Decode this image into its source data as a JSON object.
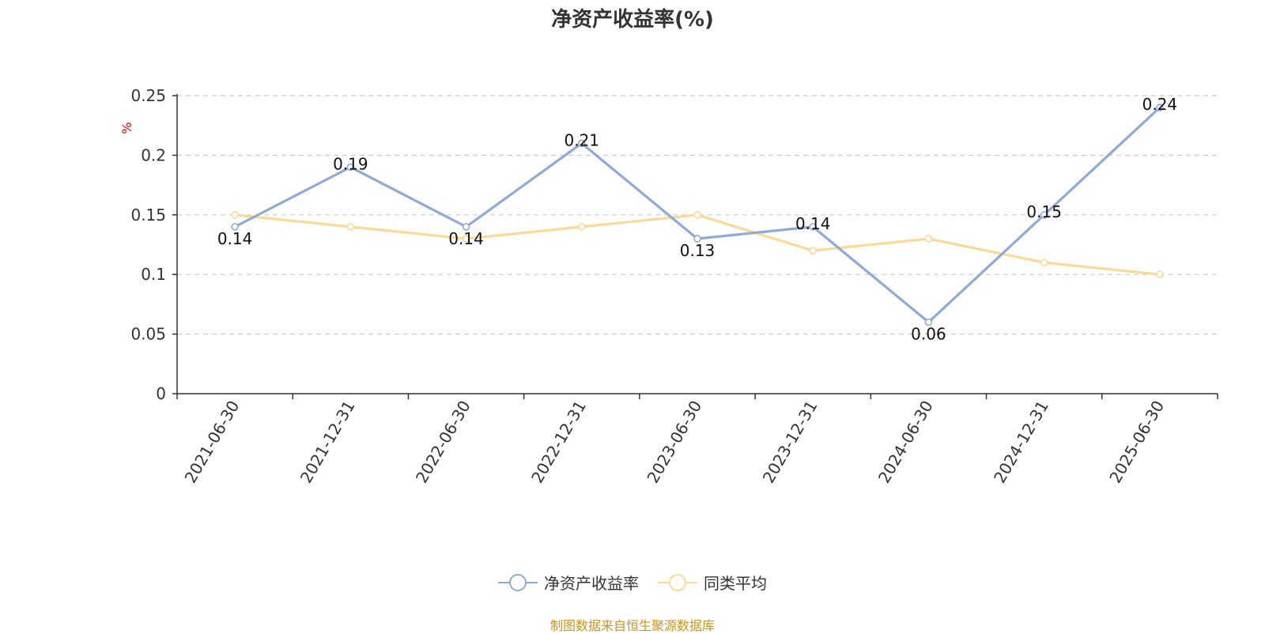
{
  "chart_data": {
    "type": "line",
    "title": "净资产收益率(%)",
    "ylabel": "%",
    "xlabel": "",
    "categories": [
      "2021-06-30",
      "2021-12-31",
      "2022-06-30",
      "2022-12-31",
      "2023-06-30",
      "2023-12-31",
      "2024-06-30",
      "2024-12-31",
      "2025-06-30"
    ],
    "ylim": [
      0,
      0.25
    ],
    "yticks": [
      "0",
      "0.05",
      "0.1",
      "0.15",
      "0.2",
      "0.25"
    ],
    "grid": true,
    "legend_position": "bottom",
    "series": [
      {
        "name": "净资产收益率",
        "color": "#8eaad6",
        "values": [
          0.14,
          0.19,
          0.14,
          0.21,
          0.13,
          0.14,
          0.06,
          0.15,
          0.24
        ],
        "labels": [
          "0.14",
          "0.19",
          "0.14",
          "0.21",
          "0.13",
          "0.14",
          "0.06",
          "0.15",
          "0.24"
        ]
      },
      {
        "name": "同类平均",
        "color": "#fcd996",
        "values": [
          0.15,
          0.14,
          0.13,
          0.14,
          0.15,
          0.12,
          0.13,
          0.11,
          0.1
        ]
      }
    ]
  },
  "footer": {
    "source": "制图数据来自恒生聚源数据库",
    "source_color": "#c8961e"
  },
  "colors": {
    "axis": "#333333",
    "grid": "#cccccc",
    "ylabel": "#e60000"
  }
}
